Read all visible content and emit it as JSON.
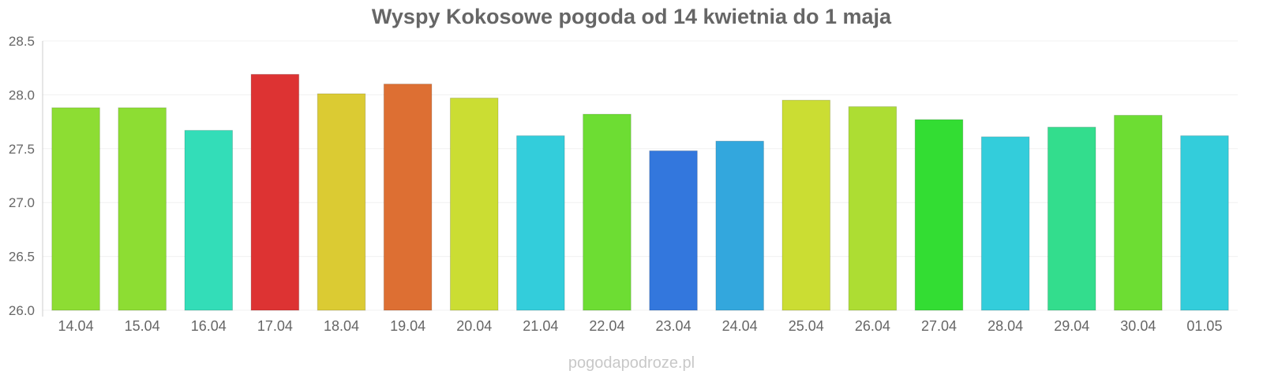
{
  "chart_data": {
    "type": "bar",
    "title": "Wyspy Kokosowe pogoda od 14 kwietnia do 1 maja",
    "xlabel": "",
    "ylabel": "",
    "ylim": [
      26.0,
      28.5
    ],
    "yticks": [
      "26.0",
      "26.5",
      "27.0",
      "27.5",
      "28.0",
      "28.5"
    ],
    "categories": [
      "14.04",
      "15.04",
      "16.04",
      "17.04",
      "18.04",
      "19.04",
      "20.04",
      "21.04",
      "22.04",
      "23.04",
      "24.04",
      "25.04",
      "26.04",
      "27.04",
      "28.04",
      "29.04",
      "30.04",
      "01.05"
    ],
    "values": [
      27.88,
      27.88,
      27.67,
      28.19,
      28.01,
      28.1,
      27.97,
      27.62,
      27.82,
      27.48,
      27.57,
      27.95,
      27.89,
      27.77,
      27.61,
      27.7,
      27.81,
      27.62
    ],
    "colors": [
      "#8ddd33",
      "#8ddd33",
      "#33ddb8",
      "#dd3333",
      "#dbcb33",
      "#dd6f33",
      "#cbdd33",
      "#33cddb",
      "#6ddd33",
      "#3377dd",
      "#33a7dd",
      "#cbdd33",
      "#addd33",
      "#33dd33",
      "#33cddb",
      "#33dd8d",
      "#6ddd33",
      "#33cddb"
    ],
    "grid": true,
    "legend": "none"
  },
  "footer": {
    "watermark": "pogodapodroze.pl"
  }
}
